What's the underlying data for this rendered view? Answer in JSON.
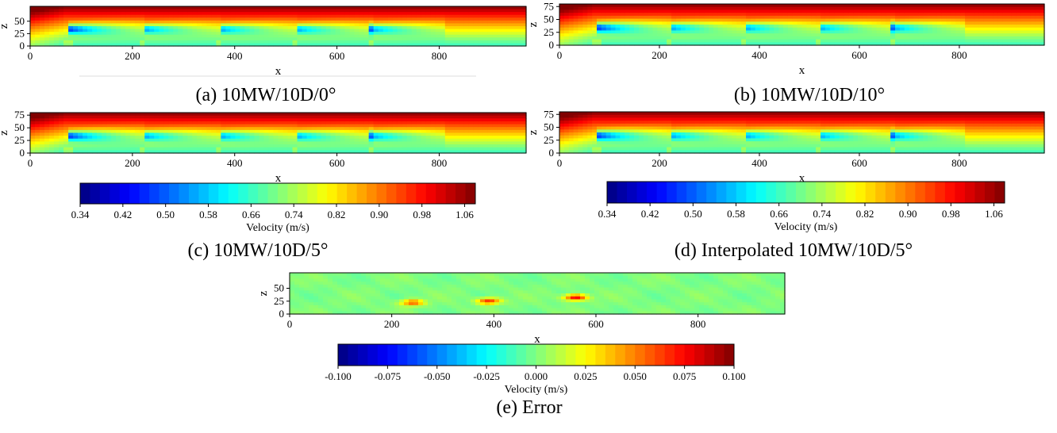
{
  "chart_data": [
    {
      "type": "heatmap",
      "caption": "(a) 10MW/10D/0°",
      "xlabel": "x",
      "ylabel": "z",
      "xlim": [
        0,
        970
      ],
      "ylim": [
        0,
        80
      ],
      "xticks": [
        "0",
        "200",
        "400",
        "600",
        "800"
      ],
      "yticks": [
        "0",
        "25",
        "50"
      ],
      "turbine_x": [
        75,
        222,
        370,
        518,
        666
      ],
      "colormap": "jet",
      "value_range": [
        0.34,
        1.08
      ]
    },
    {
      "type": "heatmap",
      "caption": "(b) 10MW/10D/10°",
      "xlabel": "x",
      "ylabel": "z",
      "xlim": [
        0,
        970
      ],
      "ylim": [
        0,
        80
      ],
      "xticks": [
        "0",
        "200",
        "400",
        "600",
        "800"
      ],
      "yticks": [
        "0",
        "25",
        "50",
        "75"
      ],
      "turbine_x": [
        75,
        222,
        370,
        518,
        666
      ],
      "colormap": "jet",
      "value_range": [
        0.34,
        1.08
      ]
    },
    {
      "type": "heatmap",
      "caption": "(c) 10MW/10D/5°",
      "xlabel": "x",
      "ylabel": "z",
      "xlim": [
        0,
        970
      ],
      "ylim": [
        0,
        80
      ],
      "xticks": [
        "0",
        "200",
        "400",
        "600",
        "800"
      ],
      "yticks": [
        "0",
        "25",
        "50",
        "75"
      ],
      "turbine_x": [
        75,
        222,
        370,
        518,
        666
      ],
      "colormap": "jet",
      "value_range": [
        0.34,
        1.08
      ],
      "colorbar": {
        "label": "Velocity (m/s)",
        "ticks": [
          "0.34",
          "0.42",
          "0.50",
          "0.58",
          "0.66",
          "0.74",
          "0.82",
          "0.90",
          "0.98",
          "1.06"
        ],
        "min": 0.34,
        "max": 1.08
      }
    },
    {
      "type": "heatmap",
      "caption": "(d) Interpolated 10MW/10D/5°",
      "xlabel": "x",
      "ylabel": "z",
      "xlim": [
        0,
        970
      ],
      "ylim": [
        0,
        80
      ],
      "xticks": [
        "0",
        "200",
        "400",
        "600",
        "800"
      ],
      "yticks": [
        "0",
        "25",
        "50",
        "75"
      ],
      "turbine_x": [
        75,
        222,
        370,
        518,
        666
      ],
      "colormap": "jet",
      "value_range": [
        0.34,
        1.08
      ],
      "colorbar": {
        "label": "Velocity (m/s)",
        "ticks": [
          "0.34",
          "0.42",
          "0.50",
          "0.58",
          "0.66",
          "0.74",
          "0.82",
          "0.90",
          "0.98",
          "1.06"
        ],
        "min": 0.34,
        "max": 1.08
      }
    },
    {
      "type": "heatmap",
      "caption": "(e) Error",
      "xlabel": "x",
      "ylabel": "z",
      "xlim": [
        0,
        970
      ],
      "ylim": [
        0,
        80
      ],
      "xticks": [
        "0",
        "200",
        "400",
        "600",
        "800"
      ],
      "yticks": [
        "0",
        "25",
        "50"
      ],
      "colormap": "jet",
      "value_range": [
        -0.1,
        0.1
      ],
      "hotspots": [
        {
          "x": 240,
          "z": 22,
          "value": 0.06
        },
        {
          "x": 390,
          "z": 25,
          "value": 0.07
        },
        {
          "x": 560,
          "z": 32,
          "value": 0.08
        }
      ],
      "colorbar": {
        "label": "Velocity (m/s)",
        "ticks": [
          "-0.100",
          "-0.075",
          "-0.050",
          "-0.025",
          "0.000",
          "0.025",
          "0.050",
          "0.075",
          "0.100"
        ],
        "min": -0.1,
        "max": 0.1
      }
    }
  ]
}
